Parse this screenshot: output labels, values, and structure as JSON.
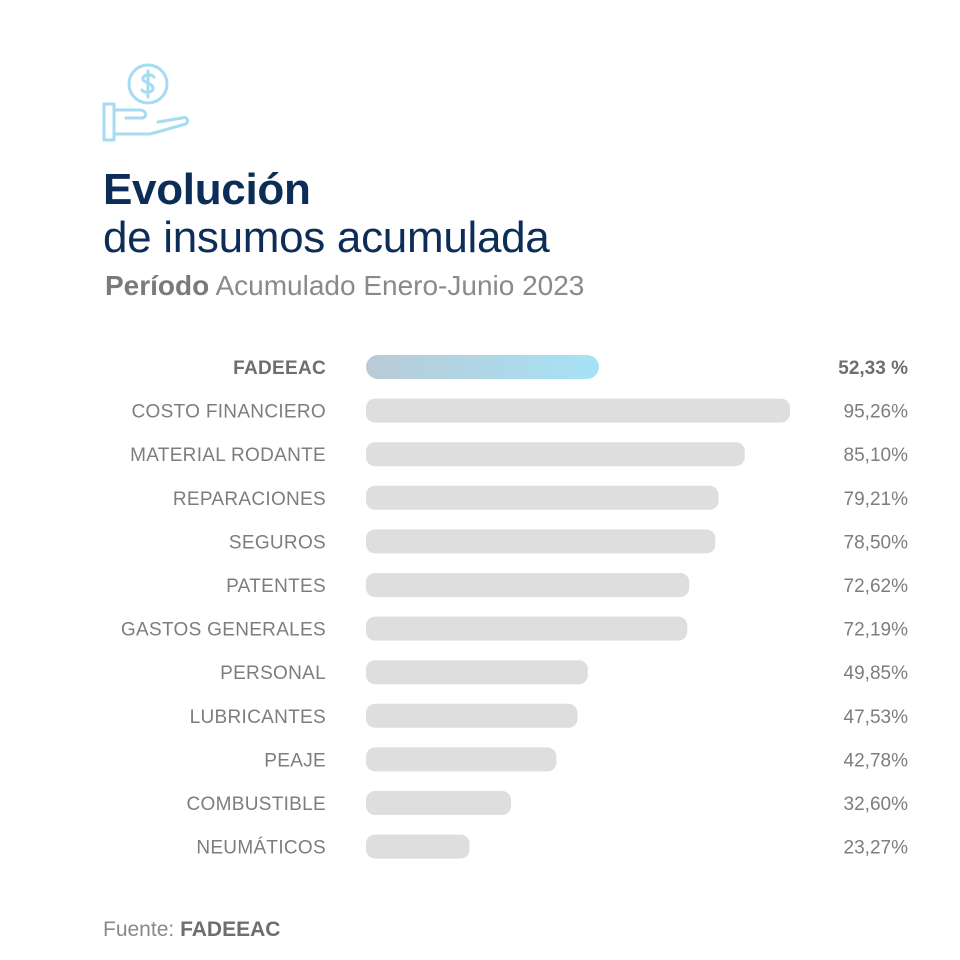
{
  "header": {
    "icon": "hand-dollar-coin-icon",
    "title_line1": "Evolución",
    "title_line2": "de insumos acumulada",
    "subtitle_bold": "Período",
    "subtitle_rest": "Acumulado Enero-Junio 2023"
  },
  "footer": {
    "source_label": "Fuente:",
    "source_value": "FADEEAC"
  },
  "colors": {
    "title": "#0c2d57",
    "bar": "#dedede",
    "highlight_start": "#b9cbd6",
    "highlight_end": "#a6e2f6",
    "icon": "#a6dcf2"
  },
  "chart_data": {
    "type": "bar",
    "orientation": "horizontal",
    "categories": [
      "FADEEAC",
      "COSTO FINANCIERO",
      "MATERIAL RODANTE",
      "REPARACIONES",
      "SEGUROS",
      "PATENTES",
      "GASTOS GENERALES",
      "PERSONAL",
      "LUBRICANTES",
      "PEAJE",
      "COMBUSTIBLE",
      "NEUMÁTICOS"
    ],
    "values": [
      52.33,
      95.26,
      85.1,
      79.21,
      78.5,
      72.62,
      72.19,
      49.85,
      47.53,
      42.78,
      32.6,
      23.27
    ],
    "value_labels": [
      "52,33 %",
      "95,26%",
      "85,10%",
      "79,21%",
      "78,50%",
      "72,62%",
      "72,19%",
      "49,85%",
      "47,53%",
      "42,78%",
      "32,60%",
      "23,27%"
    ],
    "highlighted": "FADEEAC",
    "grid": false,
    "legend": "none"
  }
}
